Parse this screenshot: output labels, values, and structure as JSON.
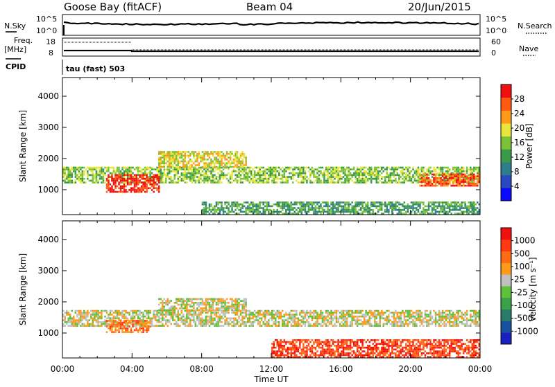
{
  "header": {
    "station": "Goose Bay (fitACF)",
    "beam": "Beam 04",
    "date": "20/Jun/2015"
  },
  "strip_panels": {
    "left": {
      "nsky_label": "N.Sky",
      "freq_label": "Freq.",
      "freq_unit": "[MHz]",
      "cpid_label": "CPID",
      "nsky_ticks": [
        "10^5",
        "10^0"
      ],
      "freq_ticks": [
        "18",
        "8"
      ]
    },
    "right": {
      "nsearch_label": "N.Search",
      "nave_label": "Nave",
      "nsearch_ticks": [
        "10^5",
        "10^0"
      ],
      "nave_ticks": [
        "60",
        "0"
      ]
    },
    "cpid_text": "tau (fast) 503"
  },
  "colors": {
    "power_scale": [
      "#0a0aff",
      "#2a49c0",
      "#2e7d8a",
      "#3a9a4a",
      "#7ac23a",
      "#e8e63a",
      "#ff9a1a",
      "#ff5a14",
      "#f01010"
    ],
    "velocity_scale": [
      "#1a20c0",
      "#1a50a0",
      "#2a7a6a",
      "#3aa04a",
      "#60c03a",
      "#c0c0c0",
      "#ff9a1a",
      "#ff6a14",
      "#ff3a12",
      "#f01010"
    ]
  },
  "chart_data": [
    {
      "type": "heatmap",
      "panel": "power",
      "ylabel": "Slant Range [km]",
      "ylim": [
        200,
        4600
      ],
      "yticks": [
        "1000",
        "2000",
        "3000",
        "4000"
      ],
      "xlim_hours": [
        0,
        24
      ],
      "colorbar_label": "Power [dB]",
      "colorbar_ticks": [
        "4",
        "8",
        "12",
        "16",
        "20",
        "24",
        "28"
      ],
      "bands": [
        {
          "name": "main-echo",
          "t": [
            0.0,
            24.0
          ],
          "range": [
            1200,
            1700
          ],
          "level": 4
        },
        {
          "name": "strong-echo-morning",
          "t": [
            2.5,
            5.5
          ],
          "range": [
            900,
            1500
          ],
          "level": 8
        },
        {
          "name": "upper-arc",
          "t": [
            5.5,
            10.5
          ],
          "range": [
            1700,
            2200
          ],
          "level": 5
        },
        {
          "name": "evening-strong",
          "t": [
            20.5,
            24.0
          ],
          "range": [
            1100,
            1500
          ],
          "level": 7
        },
        {
          "name": "near-range-ground",
          "t": [
            8.0,
            24.0
          ],
          "range": [
            200,
            600
          ],
          "level": 3
        }
      ]
    },
    {
      "type": "heatmap",
      "panel": "velocity",
      "ylabel": "Slant Range [km]",
      "xlabel": "Time UT",
      "ylim": [
        200,
        4600
      ],
      "yticks": [
        "1000",
        "2000",
        "3000",
        "4000"
      ],
      "xticks": [
        "00:00",
        "04:00",
        "08:00",
        "12:00",
        "16:00",
        "20:00",
        "00:00"
      ],
      "xlim_hours": [
        0,
        24
      ],
      "colorbar_label": "Velocity [m s⁻¹]",
      "colorbar_ticks": [
        "1000",
        "500",
        "100",
        "25",
        "-25",
        "-100",
        "-500",
        "-1000"
      ],
      "bands": [
        {
          "name": "ground-scatter",
          "t": [
            0.0,
            24.0
          ],
          "range": [
            1200,
            1700
          ],
          "level": 5
        },
        {
          "name": "morning-flow",
          "t": [
            2.5,
            5.0
          ],
          "range": [
            1000,
            1400
          ],
          "level": 7
        },
        {
          "name": "upper-arc-gs",
          "t": [
            5.5,
            10.5
          ],
          "range": [
            1700,
            2100
          ],
          "level": 5
        },
        {
          "name": "near-range-noise",
          "t": [
            12.0,
            24.0
          ],
          "range": [
            200,
            800
          ],
          "level": 8
        }
      ]
    }
  ]
}
